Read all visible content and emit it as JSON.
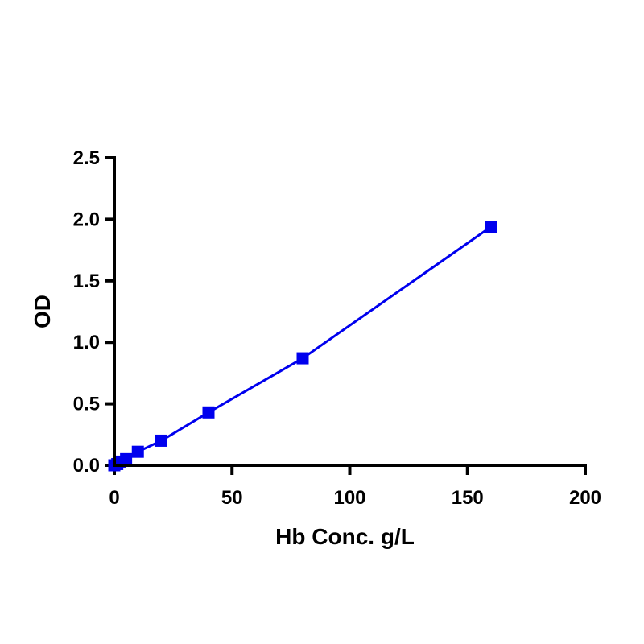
{
  "chart_data": {
    "type": "line",
    "title": "",
    "xlabel": "Hb Conc. g/L",
    "ylabel": "OD",
    "xlim": [
      0,
      200
    ],
    "ylim": [
      0,
      2.5
    ],
    "x_ticks": [
      "0",
      "50",
      "100",
      "150",
      "200"
    ],
    "y_ticks": [
      "0.0",
      "0.5",
      "1.0",
      "1.5",
      "2.0",
      "2.5"
    ],
    "grid": false,
    "legend": "none",
    "series": [
      {
        "color": "#0000ee",
        "marker": "square",
        "x": [
          0,
          1.25,
          2.5,
          5,
          10,
          20,
          40,
          80,
          160
        ],
        "y": [
          0.0,
          0.01,
          0.03,
          0.05,
          0.11,
          0.2,
          0.43,
          0.87,
          1.94
        ]
      }
    ]
  }
}
